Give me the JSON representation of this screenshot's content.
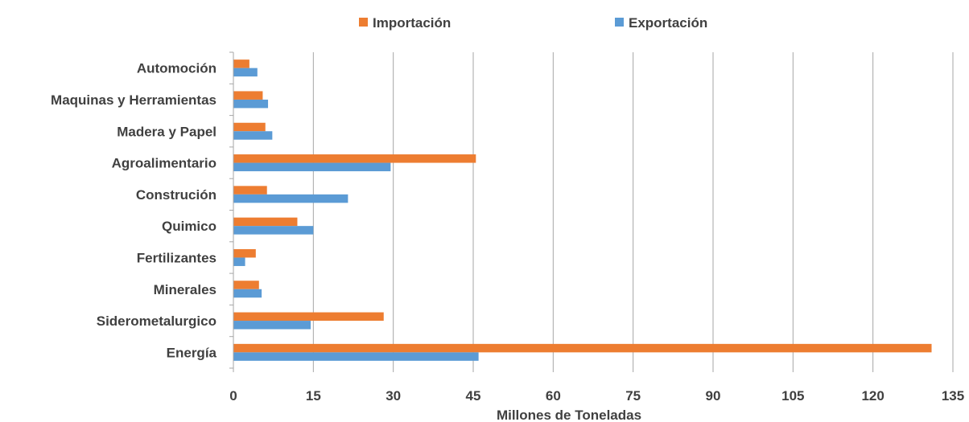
{
  "chart_data": {
    "type": "bar",
    "orientation": "horizontal",
    "categories": [
      "Automoción",
      "Maquinas y Herramientas",
      "Madera y Papel",
      "Agroalimentario",
      "Construción",
      "Quimico",
      "Fertilizantes",
      "Minerales",
      "Siderometalurgico",
      "Energía"
    ],
    "series": [
      {
        "name": "Importación",
        "color": "#ED7D31",
        "values": [
          3.0,
          5.5,
          6.0,
          45.5,
          6.3,
          12.0,
          4.2,
          4.8,
          28.2,
          131.0
        ]
      },
      {
        "name": "Exportación",
        "color": "#5B9BD5",
        "values": [
          4.5,
          6.5,
          7.3,
          29.5,
          21.5,
          15.0,
          2.2,
          5.3,
          14.5,
          46.0
        ]
      }
    ],
    "xlabel": "Millones de Toneladas",
    "ylabel": "",
    "xlim": [
      0,
      135
    ],
    "xticks": [
      "0",
      "15",
      "30",
      "45",
      "60",
      "75",
      "90",
      "105",
      "120",
      "135"
    ],
    "grid": "vertical",
    "legend_position": "top"
  }
}
